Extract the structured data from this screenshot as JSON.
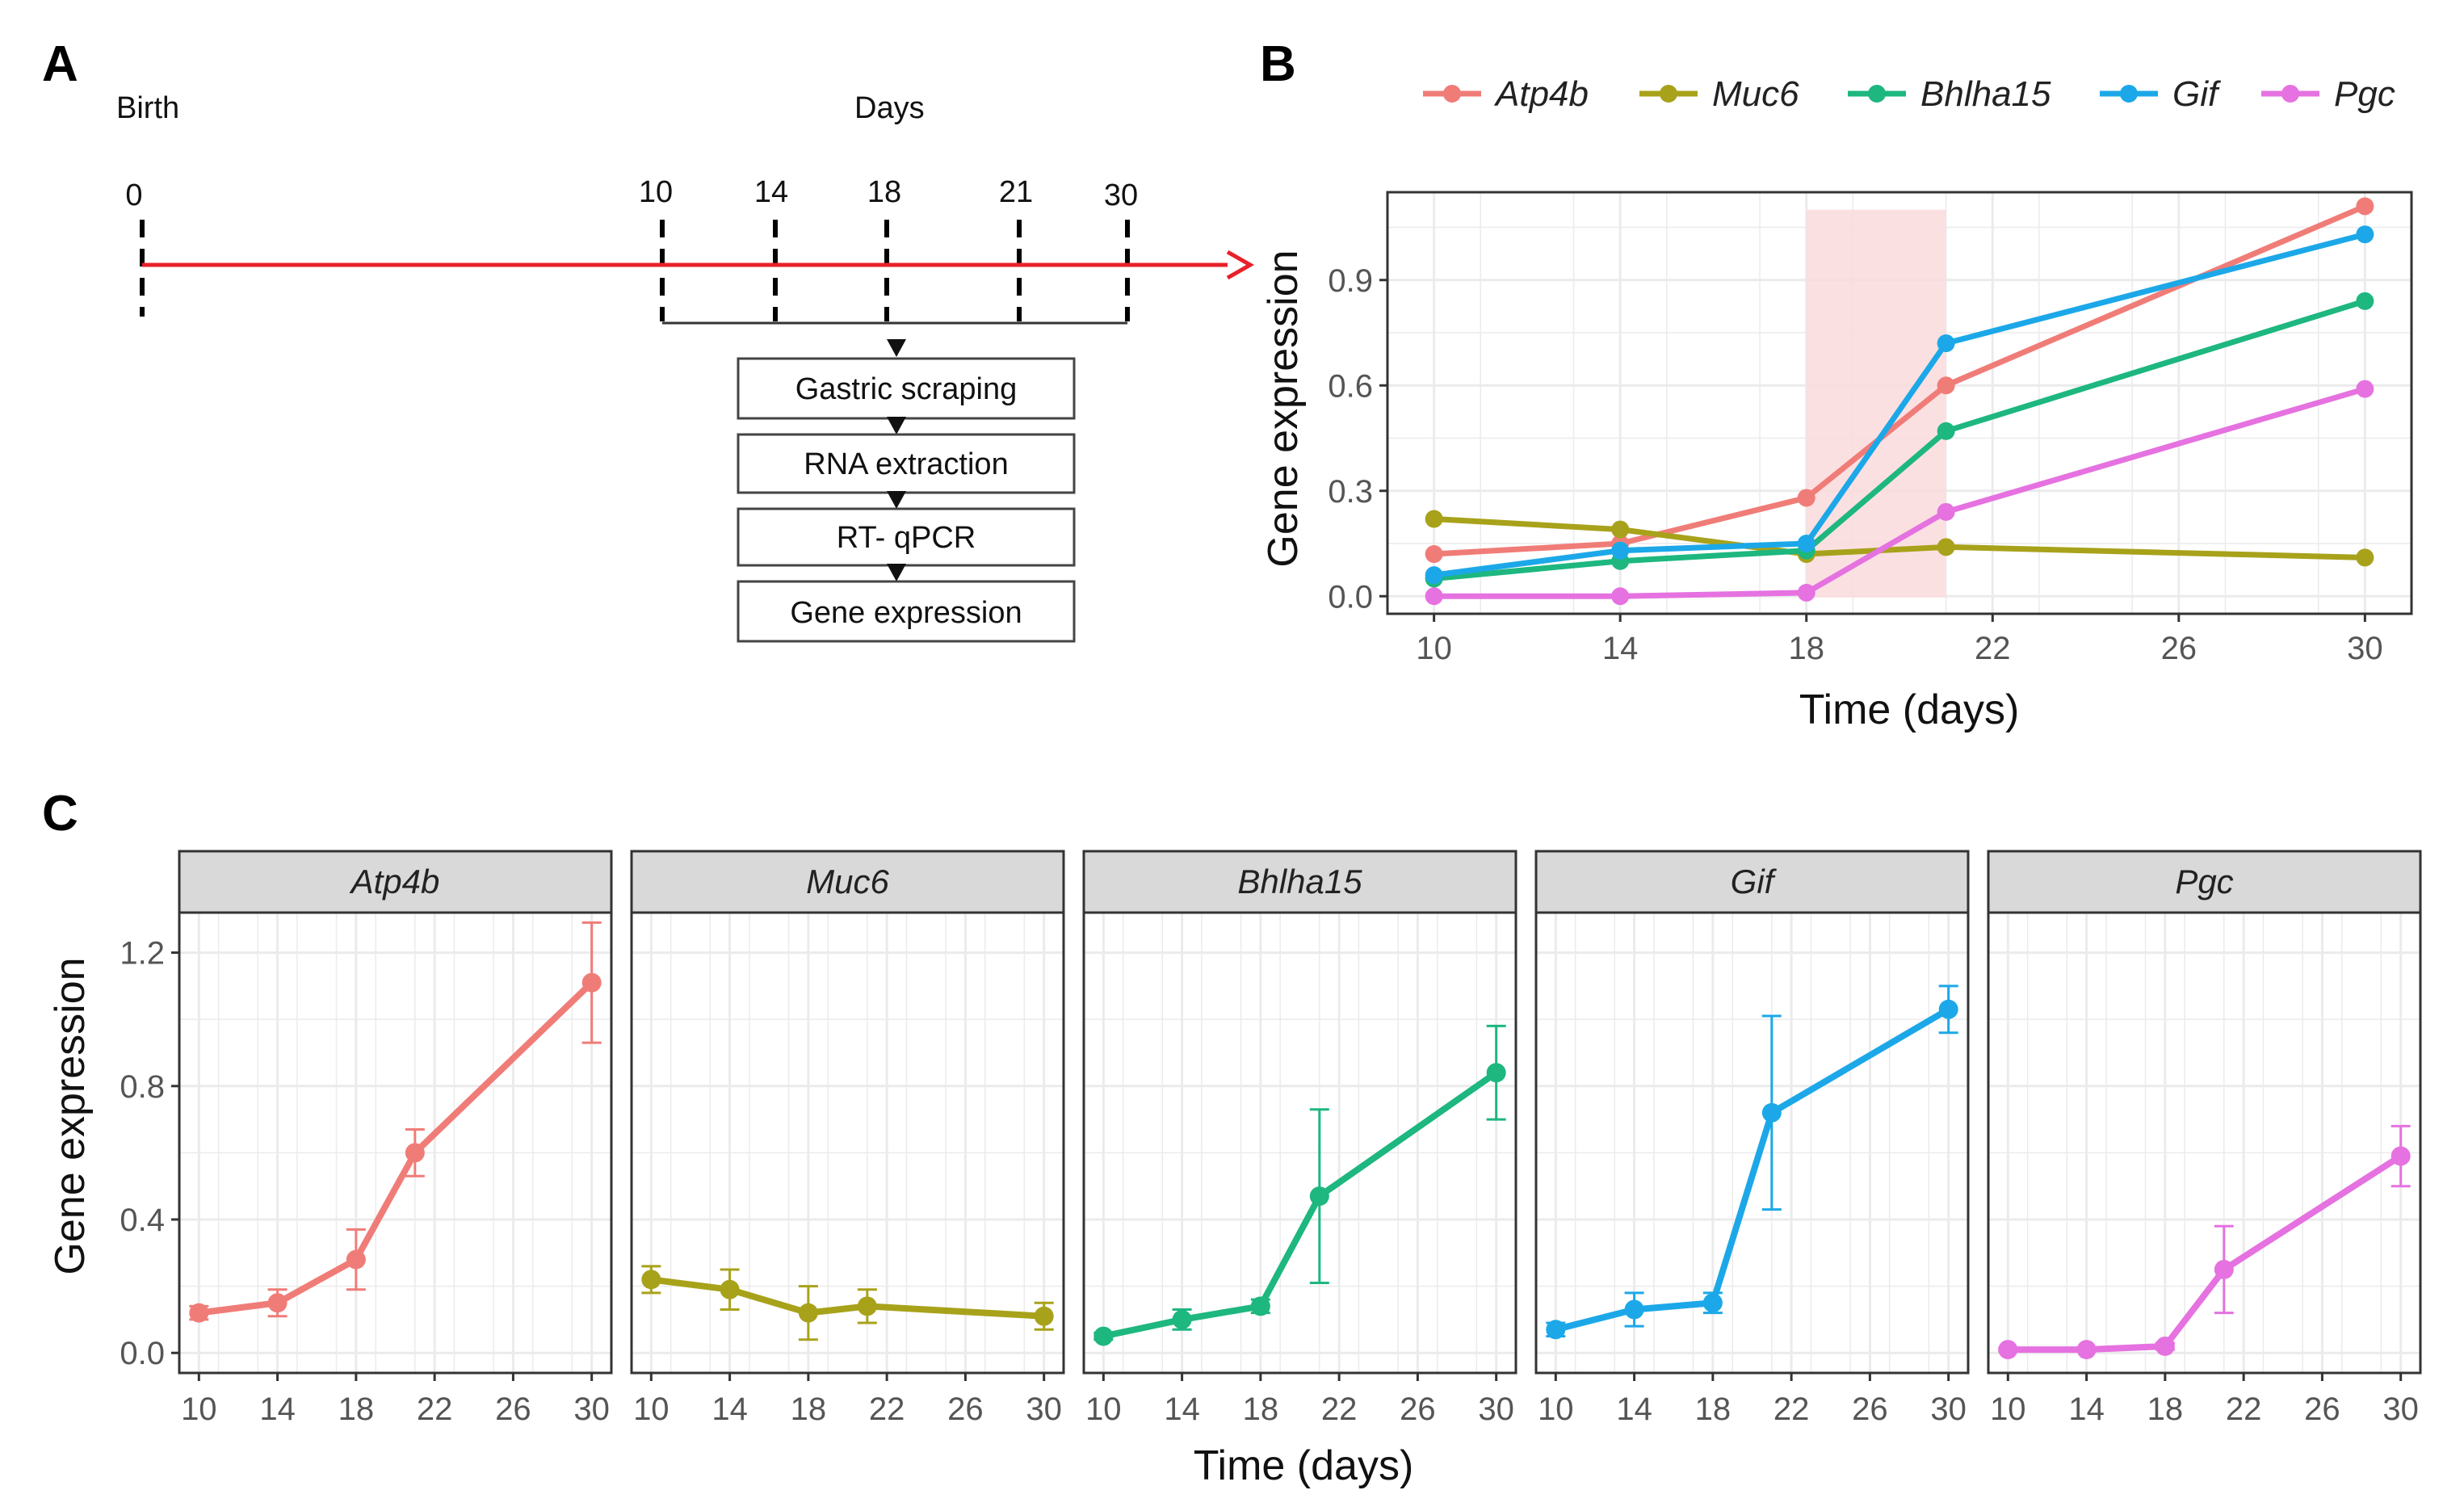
{
  "colors": {
    "Atp4b": "#F07C78",
    "Muc6": "#A8A21B",
    "Bhlha15": "#1DB77F",
    "Gif": "#1CA8E8",
    "Pgc": "#E572E0",
    "timeline": "#E8212A",
    "highlight": "#FADADD",
    "grid": "#EBEBEB",
    "strip_bg": "#D9D9D9"
  },
  "panels": {
    "a": "A",
    "b": "B",
    "c": "C"
  },
  "timeline": {
    "birth_label": "Birth",
    "days_label": "Days",
    "start_tick": "0",
    "sample_ticks": [
      "10",
      "14",
      "18",
      "21",
      "30"
    ],
    "steps": [
      "Gastric scraping",
      "RNA extraction",
      "RT- qPCR",
      "Gene expression"
    ]
  },
  "chart_data": [
    {
      "type": "line",
      "panel": "B",
      "xlabel": "Time (days)",
      "ylabel": "Gene expression",
      "xlim": [
        9,
        31
      ],
      "ylim": [
        -0.05,
        1.15
      ],
      "xticks": [
        10,
        14,
        18,
        22,
        26,
        30
      ],
      "yticks": [
        0.0,
        0.3,
        0.6,
        0.9
      ],
      "ytick_labels": [
        "0.0",
        "0.3",
        "0.6",
        "0.9"
      ],
      "highlight_x": [
        18,
        21
      ],
      "legend_position": "top",
      "x": [
        10,
        14,
        18,
        21,
        30
      ],
      "series": [
        {
          "name": "Atp4b",
          "values": [
            0.12,
            0.15,
            0.28,
            0.6,
            1.11
          ]
        },
        {
          "name": "Muc6",
          "values": [
            0.22,
            0.19,
            0.12,
            0.14,
            0.11
          ]
        },
        {
          "name": "Bhlha15",
          "values": [
            0.05,
            0.1,
            0.13,
            0.47,
            0.84
          ]
        },
        {
          "name": "Gif",
          "values": [
            0.06,
            0.13,
            0.15,
            0.72,
            1.03
          ]
        },
        {
          "name": "Pgc",
          "values": [
            0.0,
            0.0,
            0.01,
            0.24,
            0.59
          ]
        }
      ]
    },
    {
      "type": "line",
      "panel": "C",
      "faceted": true,
      "xlabel": "Time (days)",
      "ylabel": "Gene expression",
      "xlim": [
        9,
        31
      ],
      "ylim": [
        -0.06,
        1.32
      ],
      "xticks": [
        10,
        14,
        18,
        22,
        26,
        30
      ],
      "yticks": [
        0.0,
        0.4,
        0.8,
        1.2
      ],
      "ytick_labels": [
        "0.0",
        "0.4",
        "0.8",
        "1.2"
      ],
      "x": [
        10,
        14,
        18,
        21,
        30
      ],
      "series": [
        {
          "name": "Atp4b",
          "values": [
            0.12,
            0.15,
            0.28,
            0.6,
            1.11
          ],
          "error": [
            0.02,
            0.04,
            0.09,
            0.07,
            0.18
          ]
        },
        {
          "name": "Muc6",
          "values": [
            0.22,
            0.19,
            0.12,
            0.14,
            0.11
          ],
          "error": [
            0.04,
            0.06,
            0.08,
            0.05,
            0.04
          ]
        },
        {
          "name": "Bhlha15",
          "values": [
            0.05,
            0.1,
            0.14,
            0.47,
            0.84
          ],
          "error": [
            0.01,
            0.03,
            0.02,
            0.26,
            0.14
          ]
        },
        {
          "name": "Gif",
          "values": [
            0.07,
            0.13,
            0.15,
            0.72,
            1.03
          ],
          "error": [
            0.02,
            0.05,
            0.03,
            0.29,
            0.07
          ]
        },
        {
          "name": "Pgc",
          "values": [
            0.01,
            0.01,
            0.02,
            0.25,
            0.59
          ],
          "error": [
            0.005,
            0.005,
            0.01,
            0.13,
            0.09
          ]
        }
      ]
    }
  ]
}
